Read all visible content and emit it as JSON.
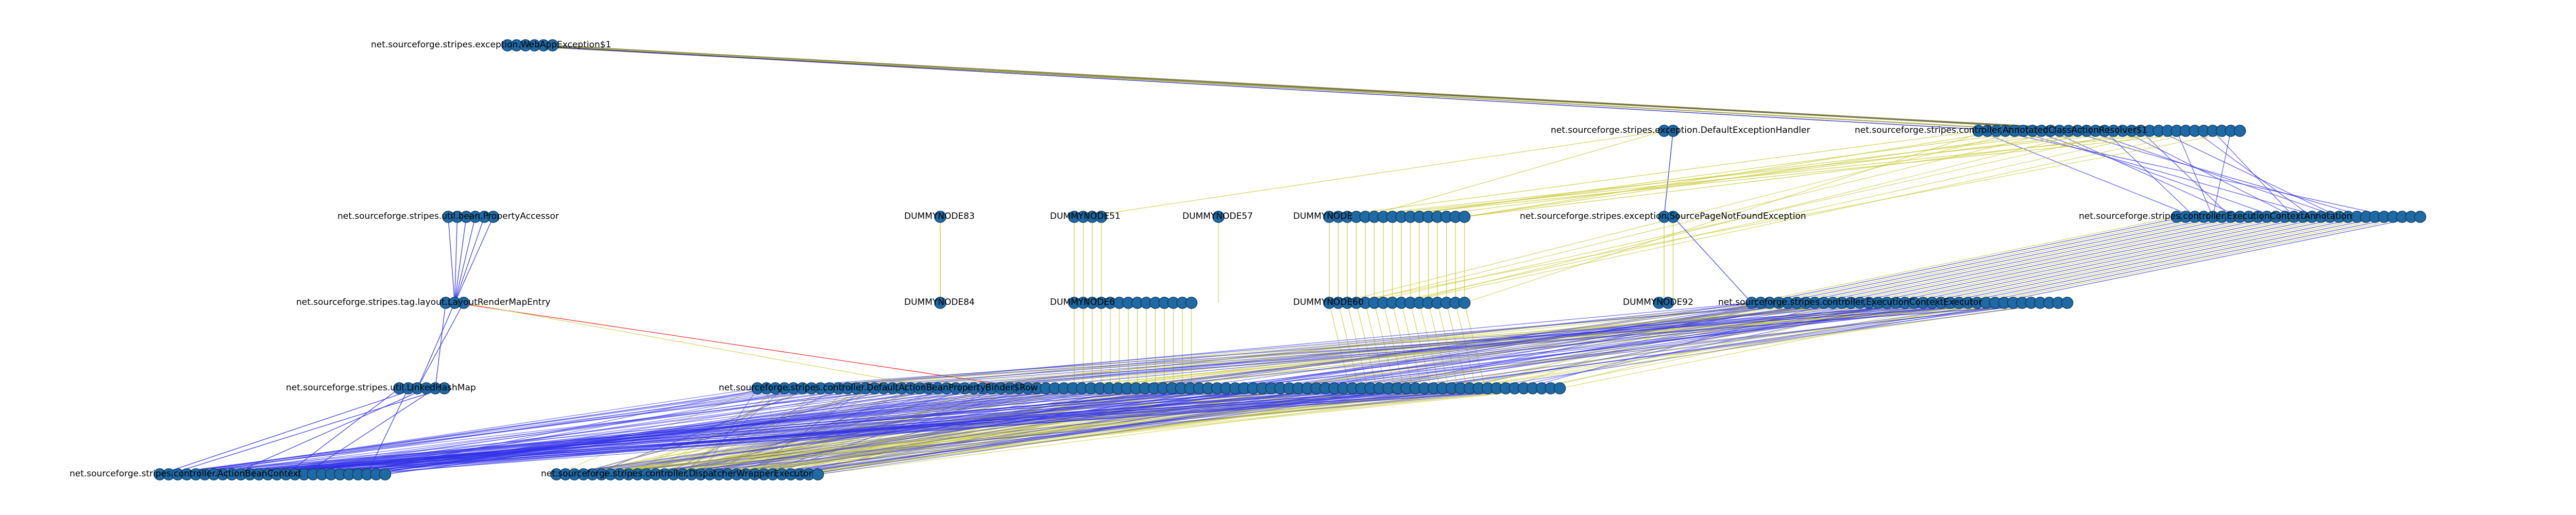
{
  "colors": {
    "node": "#1f6aa5",
    "node_stroke": "#0d3d66",
    "edge_blue": "#2d2de8",
    "edge_yellow": "#c8c832",
    "edge_red": "#ee2a2a",
    "edge_olive": "#5a5a1e",
    "label": "#000000"
  },
  "levels": [
    {
      "labels": [
        "net.sourceforge.stripes.exception.WebAppException$1"
      ],
      "clusters": [
        {
          "count": 6
        }
      ]
    },
    {
      "labels": [
        "net.sourceforge.stripes.exception.DefaultExceptionHandler",
        "net.sourceforge.stripes.controller.AnnotatedClassActionResolver$1"
      ],
      "clusters": [
        {
          "count": 2
        },
        {
          "count": 30
        }
      ]
    },
    {
      "labels": [
        "net.sourceforge.stripes.util.bean.PropertyAccessor",
        "DUMMYNODE83",
        "DUMMYNODE51",
        "DUMMYNODE57",
        "DUMMYNODE",
        "net.sourceforge.stripes.exception.SourcePageNotFoundException",
        "net.sourceforge.stripes.controller.ExecutionContextAnnotation"
      ],
      "clusters": [
        {
          "count": 6
        },
        {
          "count": 1
        },
        {
          "count": 4
        },
        {
          "count": 1
        },
        {
          "count": 16
        },
        {
          "count": 2
        },
        {
          "count": 28
        }
      ]
    },
    {
      "labels": [
        "net.sourceforge.stripes.tag.layout.LayoutRenderMapEntry",
        "DUMMYNODE84",
        "DUMMYNODE6",
        "DUMMYNODE60",
        "DUMMYNODE92",
        "net.sourceforge.stripes.controller.ExecutionContextExecutor"
      ],
      "clusters": [
        {
          "count": 3
        },
        {
          "count": 1
        },
        {
          "count": 14
        },
        {
          "count": 16
        },
        {
          "count": 2
        },
        {
          "count": 36
        }
      ]
    },
    {
      "labels": [
        "net.sourceforge.stripes.util.LinkedHashMap",
        "net.sourceforge.stripes.controller.DefaultActionBeanPropertyBinder$Row"
      ],
      "clusters": [
        {
          "count": 6
        },
        {
          "count": 90
        }
      ]
    },
    {
      "labels": [
        "net.sourceforge.stripes.controller.ActionBeanContext",
        "net.sourceforge.stripes.controller.DispatcherWrapperExecutor"
      ],
      "clusters": [
        {
          "count": 26
        },
        {
          "count": 30
        }
      ]
    }
  ]
}
